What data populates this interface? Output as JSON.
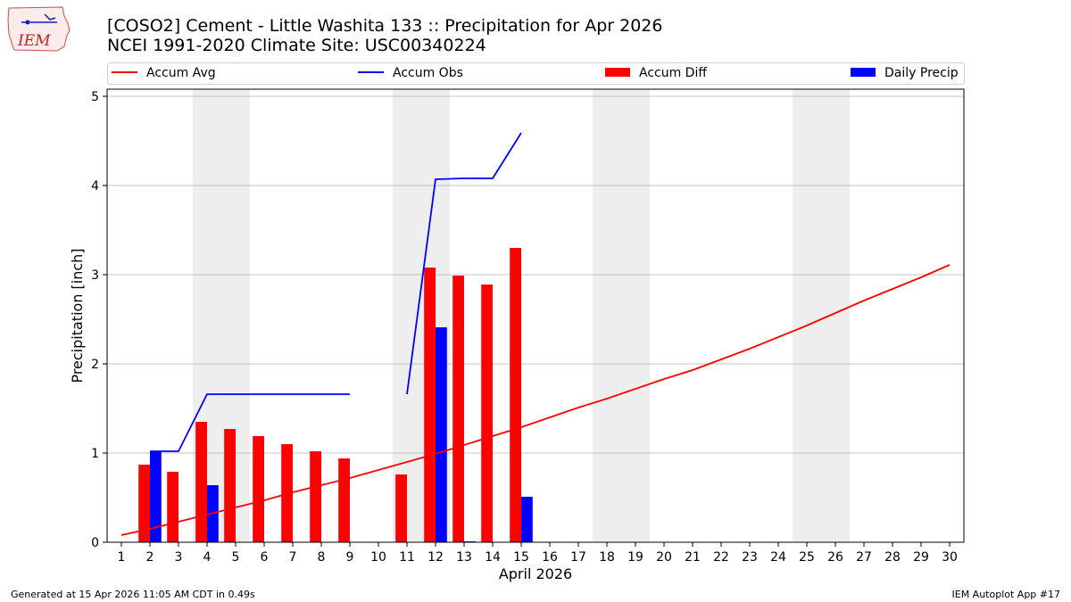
{
  "header": {
    "logo_text": "IEM",
    "title_line1": "[COSO2] Cement - Little Washita 133 :: Precipitation for Apr 2026",
    "title_line2": "NCEI 1991-2020 Climate Site: USC00340224"
  },
  "footer": {
    "left": "Generated at 15 Apr 2026 11:05 AM CDT in 0.49s",
    "right": "IEM Autoplot App #17"
  },
  "colors": {
    "accum_avg": "#ff0000",
    "accum_obs": "#0000ff",
    "accum_diff": "#ff0000",
    "daily_precip": "#0000ff",
    "weekend_shade": "#eeeeee",
    "grid": "#b0b0b0"
  },
  "chart_data": {
    "type": "bar",
    "xlabel": "April 2026",
    "ylabel": "Precipitation [inch]",
    "xlim": [
      0.5,
      30.5
    ],
    "ylim": [
      0,
      5.08
    ],
    "x_ticks": [
      1,
      2,
      3,
      4,
      5,
      6,
      7,
      8,
      9,
      10,
      11,
      12,
      13,
      14,
      15,
      16,
      17,
      18,
      19,
      20,
      21,
      22,
      23,
      24,
      25,
      26,
      27,
      28,
      29,
      30
    ],
    "y_ticks": [
      0,
      1,
      2,
      3,
      4,
      5
    ],
    "grid": "horizontal",
    "legend_position": "top",
    "shaded_days": [
      [
        3.5,
        5.5
      ],
      [
        10.5,
        12.5
      ],
      [
        17.5,
        19.5
      ],
      [
        24.5,
        26.5
      ]
    ],
    "series": [
      {
        "name": "Accum Avg",
        "kind": "line",
        "x": [
          1,
          2,
          3,
          4,
          5,
          6,
          7,
          8,
          9,
          10,
          11,
          12,
          13,
          14,
          15,
          16,
          17,
          18,
          19,
          20,
          21,
          22,
          23,
          24,
          25,
          26,
          27,
          28,
          29,
          30
        ],
        "values": [
          0.08,
          0.15,
          0.23,
          0.31,
          0.39,
          0.47,
          0.56,
          0.64,
          0.72,
          0.81,
          0.9,
          0.99,
          1.09,
          1.19,
          1.29,
          1.4,
          1.51,
          1.61,
          1.72,
          1.83,
          1.93,
          2.05,
          2.17,
          2.3,
          2.43,
          2.57,
          2.71,
          2.84,
          2.97,
          3.11
        ]
      },
      {
        "name": "Accum Obs",
        "kind": "line",
        "segments": [
          {
            "x": [
              2,
              3,
              4,
              5,
              6,
              7,
              8,
              9
            ],
            "values": [
              1.02,
              1.02,
              1.66,
              1.66,
              1.66,
              1.66,
              1.66,
              1.66
            ]
          },
          {
            "x": [
              11,
              12,
              13,
              14,
              15
            ],
            "values": [
              1.66,
              4.07,
              4.08,
              4.08,
              4.59
            ]
          }
        ]
      },
      {
        "name": "Accum Diff",
        "kind": "bar",
        "x": [
          2,
          3,
          4,
          5,
          6,
          7,
          8,
          9,
          11,
          12,
          13,
          14,
          15
        ],
        "values": [
          0.87,
          0.79,
          1.35,
          1.27,
          1.19,
          1.1,
          1.02,
          0.94,
          0.76,
          3.08,
          2.99,
          2.89,
          3.3
        ]
      },
      {
        "name": "Daily Precip",
        "kind": "bar",
        "x": [
          2,
          4,
          12,
          13,
          15
        ],
        "values": [
          1.02,
          0.64,
          2.41,
          0.01,
          0.51
        ]
      }
    ]
  }
}
